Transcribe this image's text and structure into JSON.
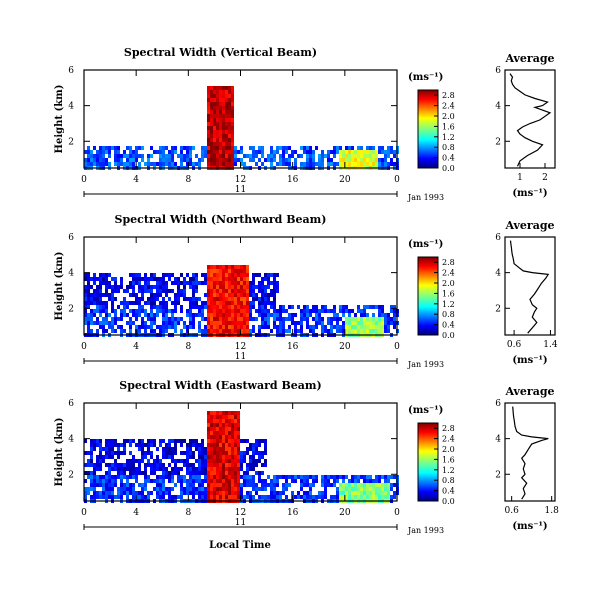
{
  "figure": {
    "xlabel": "Local Time",
    "date_label": "Jan 1993",
    "day_label": "11",
    "ylabel": "Height (km)",
    "unit_label": "(ms⁻¹)",
    "avg_title": "Average",
    "avg_xlabel": "(ms⁻¹)"
  },
  "chart_data": [
    {
      "type": "heatmap",
      "title": "Spectral Width (Vertical Beam)",
      "xlabel": "Local Time",
      "ylabel": "Height (km)",
      "x_ticks": [
        "0",
        "4",
        "8",
        "12",
        "16",
        "20",
        "0"
      ],
      "y_ticks": [
        "2",
        "4",
        "6"
      ],
      "xlim": [
        0,
        24
      ],
      "ylim": [
        0.5,
        6
      ],
      "colorbar": {
        "label": "(ms⁻¹)",
        "ticks": [
          "0.0",
          "0.4",
          "0.8",
          "1.2",
          "1.6",
          "2.0",
          "2.4",
          "2.8"
        ],
        "range": [
          0.0,
          3.0
        ]
      },
      "regions": [
        {
          "t": [
            0,
            24
          ],
          "h": [
            0.5,
            1.8
          ],
          "level": 0.6
        },
        {
          "t": [
            9.5,
            11.5
          ],
          "h": [
            0.5,
            5.0
          ],
          "level": 2.8
        },
        {
          "t": [
            19.5,
            22.5
          ],
          "h": [
            0.5,
            1.6
          ],
          "level": 1.8
        }
      ]
    },
    {
      "type": "heatmap",
      "title": "Spectral Width (Northward Beam)",
      "xlabel": "Local Time",
      "ylabel": "Height (km)",
      "x_ticks": [
        "0",
        "4",
        "8",
        "12",
        "16",
        "20",
        "0"
      ],
      "y_ticks": [
        "2",
        "4",
        "6"
      ],
      "xlim": [
        0,
        24
      ],
      "ylim": [
        0.5,
        6
      ],
      "colorbar": {
        "label": "(ms⁻¹)",
        "ticks": [
          "0.0",
          "0.4",
          "0.8",
          "1.2",
          "1.6",
          "2.0",
          "2.4",
          "2.8"
        ],
        "range": [
          0.0,
          3.0
        ]
      },
      "regions": [
        {
          "t": [
            0,
            24
          ],
          "h": [
            0.5,
            2.2
          ],
          "level": 0.5
        },
        {
          "t": [
            0,
            15
          ],
          "h": [
            2.2,
            4.0
          ],
          "level": 0.3
        },
        {
          "t": [
            9.5,
            12.5
          ],
          "h": [
            0.5,
            4.5
          ],
          "level": 2.6
        },
        {
          "t": [
            20,
            23
          ],
          "h": [
            0.5,
            1.5
          ],
          "level": 1.6
        }
      ]
    },
    {
      "type": "heatmap",
      "title": "Spectral Width (Eastward Beam)",
      "xlabel": "Local Time",
      "ylabel": "Height (km)",
      "x_ticks": [
        "0",
        "4",
        "8",
        "12",
        "16",
        "20",
        "0"
      ],
      "y_ticks": [
        "2",
        "4",
        "6"
      ],
      "xlim": [
        0,
        24
      ],
      "ylim": [
        0.5,
        6
      ],
      "colorbar": {
        "label": "(ms⁻¹)",
        "ticks": [
          "0.0",
          "0.4",
          "0.8",
          "1.2",
          "1.6",
          "2.0",
          "2.4",
          "2.8"
        ],
        "range": [
          0.0,
          3.0
        ]
      },
      "regions": [
        {
          "t": [
            0,
            24
          ],
          "h": [
            0.5,
            2.0
          ],
          "level": 0.5
        },
        {
          "t": [
            0,
            14
          ],
          "h": [
            2.0,
            4.0
          ],
          "level": 0.3
        },
        {
          "t": [
            9.5,
            12.0
          ],
          "h": [
            0.5,
            5.5
          ],
          "level": 2.7
        },
        {
          "t": [
            19.5,
            23.5
          ],
          "h": [
            0.5,
            1.6
          ],
          "level": 1.5
        }
      ]
    },
    {
      "type": "line",
      "title": "Average",
      "xlabel": "(ms⁻¹)",
      "x_ticks": [
        "1",
        "2"
      ],
      "xlim": [
        0.4,
        2.4
      ],
      "y_ticks": [
        "2",
        "4",
        "6"
      ],
      "ylim": [
        0.5,
        6
      ],
      "series": [
        {
          "x": [
            0.9,
            1.0,
            1.3,
            1.7,
            1.9,
            1.5,
            1.2,
            1.0,
            0.9,
            1.1,
            1.4,
            1.8,
            2.0,
            2.2,
            1.8,
            1.6,
            1.9,
            2.1,
            1.6,
            1.2,
            1.0,
            0.8,
            0.7,
            0.65,
            0.7,
            0.6
          ],
          "y": [
            0.6,
            0.9,
            1.2,
            1.5,
            1.8,
            2.0,
            2.2,
            2.4,
            2.6,
            2.8,
            3.0,
            3.2,
            3.4,
            3.6,
            3.8,
            3.9,
            4.0,
            4.2,
            4.4,
            4.6,
            4.8,
            5.0,
            5.2,
            5.4,
            5.6,
            5.8
          ]
        }
      ]
    },
    {
      "type": "line",
      "title": "Average",
      "xlabel": "(ms⁻¹)",
      "x_ticks": [
        "0.6",
        "1.4"
      ],
      "xlim": [
        0.4,
        1.5
      ],
      "y_ticks": [
        "2",
        "4",
        "6"
      ],
      "ylim": [
        0.5,
        6
      ],
      "series": [
        {
          "x": [
            0.9,
            1.0,
            1.1,
            1.0,
            1.05,
            1.1,
            1.0,
            0.95,
            1.05,
            1.1,
            1.15,
            1.2,
            1.3,
            1.35,
            1.0,
            0.8,
            0.7,
            0.6,
            0.58,
            0.56,
            0.55,
            0.54,
            0.53,
            0.52
          ],
          "y": [
            0.6,
            0.9,
            1.2,
            1.5,
            1.8,
            2.0,
            2.2,
            2.5,
            2.8,
            3.0,
            3.2,
            3.4,
            3.7,
            3.9,
            4.0,
            4.1,
            4.3,
            4.5,
            4.8,
            5.0,
            5.2,
            5.4,
            5.6,
            5.8
          ]
        }
      ]
    },
    {
      "type": "line",
      "title": "Average",
      "xlabel": "(ms⁻¹)",
      "x_ticks": [
        "0.6",
        "1.8"
      ],
      "xlim": [
        0.4,
        1.9
      ],
      "y_ticks": [
        "2",
        "4",
        "6"
      ],
      "ylim": [
        0.5,
        6
      ],
      "series": [
        {
          "x": [
            0.9,
            1.0,
            0.95,
            1.05,
            0.9,
            1.0,
            0.95,
            1.0,
            0.9,
            1.0,
            1.1,
            1.2,
            1.5,
            1.7,
            1.2,
            0.9,
            0.75,
            0.7,
            0.68,
            0.66,
            0.65,
            0.64,
            0.63
          ],
          "y": [
            0.6,
            0.9,
            1.2,
            1.5,
            1.8,
            2.0,
            2.3,
            2.6,
            2.9,
            3.1,
            3.4,
            3.7,
            3.9,
            4.0,
            4.1,
            4.2,
            4.4,
            4.7,
            5.0,
            5.2,
            5.4,
            5.6,
            5.8
          ]
        }
      ]
    }
  ]
}
